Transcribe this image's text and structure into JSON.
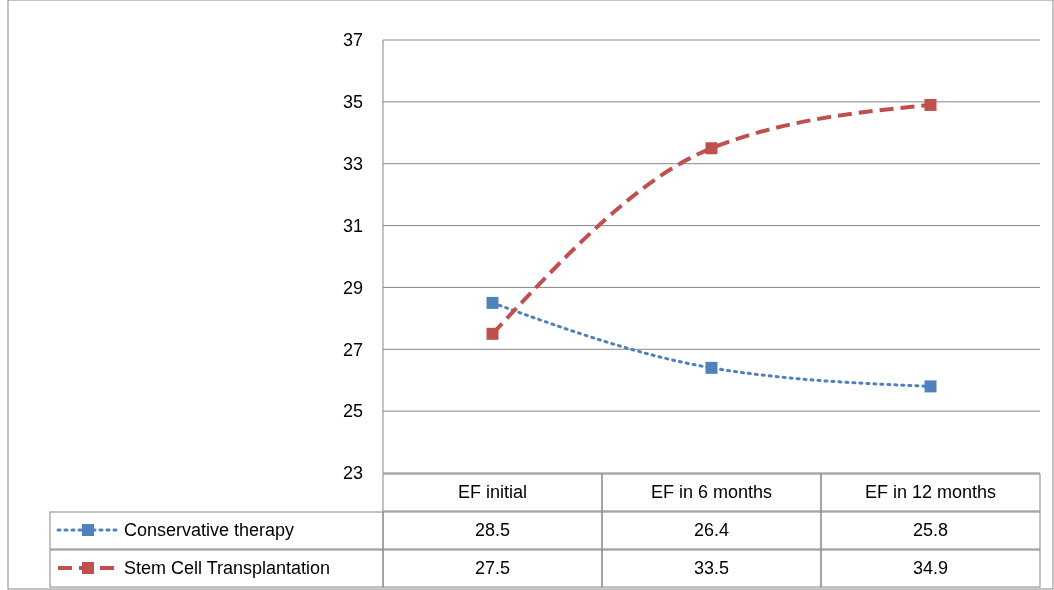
{
  "chart_data": {
    "type": "line",
    "categories": [
      "EF initial",
      "EF in 6 months",
      "EF in 12 months"
    ],
    "series": [
      {
        "name": "Conservative therapy",
        "color": "#4f81bd",
        "values": [
          28.5,
          26.4,
          25.8
        ],
        "line_style": "dotted"
      },
      {
        "name": "Stem Cell Transplantation",
        "color": "#c0504d",
        "values": [
          27.5,
          33.5,
          34.9
        ],
        "line_style": "dashed"
      }
    ],
    "ylim": [
      23,
      37
    ],
    "yticks": [
      23,
      25,
      27,
      29,
      31,
      33,
      35,
      37
    ],
    "grid": "y",
    "marker": "square",
    "legend": "bottom",
    "data_labels": true
  }
}
